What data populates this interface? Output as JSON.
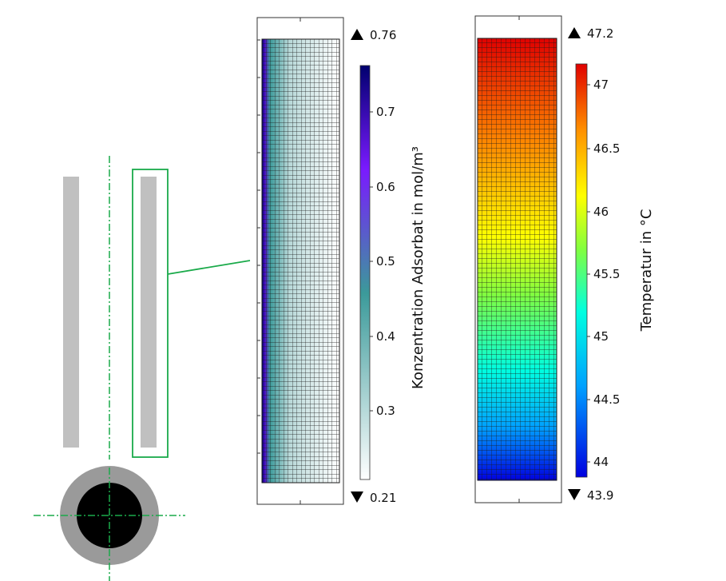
{
  "schematic": {
    "tube_color": "#c0c0c0",
    "axis_color": "#1aaa4a",
    "outer_ring_color": "#9a9a9a",
    "core_color": "#000000"
  },
  "plot_concentration": {
    "max_label": "0.76",
    "min_label": "0.21",
    "colorbar_ticks": [
      "0.7",
      "0.6",
      "0.5",
      "0.4",
      "0.3"
    ],
    "colorbar_title": "Konzentration Adsorbat in mol/m³",
    "max_value": 0.76,
    "min_value": 0.21,
    "colormap": [
      "#ffffff",
      "#3b9a9a",
      "#7a1aff",
      "#00006e"
    ]
  },
  "plot_temperature": {
    "max_label": "47.2",
    "min_label": "43.9",
    "colorbar_ticks": [
      "47",
      "46.5",
      "46",
      "45.5",
      "45",
      "44.5",
      "44"
    ],
    "colorbar_title": "Temperatur in °C",
    "max_value": 47.2,
    "min_value": 43.9,
    "colormap": [
      "#0000e0",
      "#00a0ff",
      "#00ffe0",
      "#80ff40",
      "#ffff00",
      "#ff9000",
      "#e00000"
    ]
  }
}
